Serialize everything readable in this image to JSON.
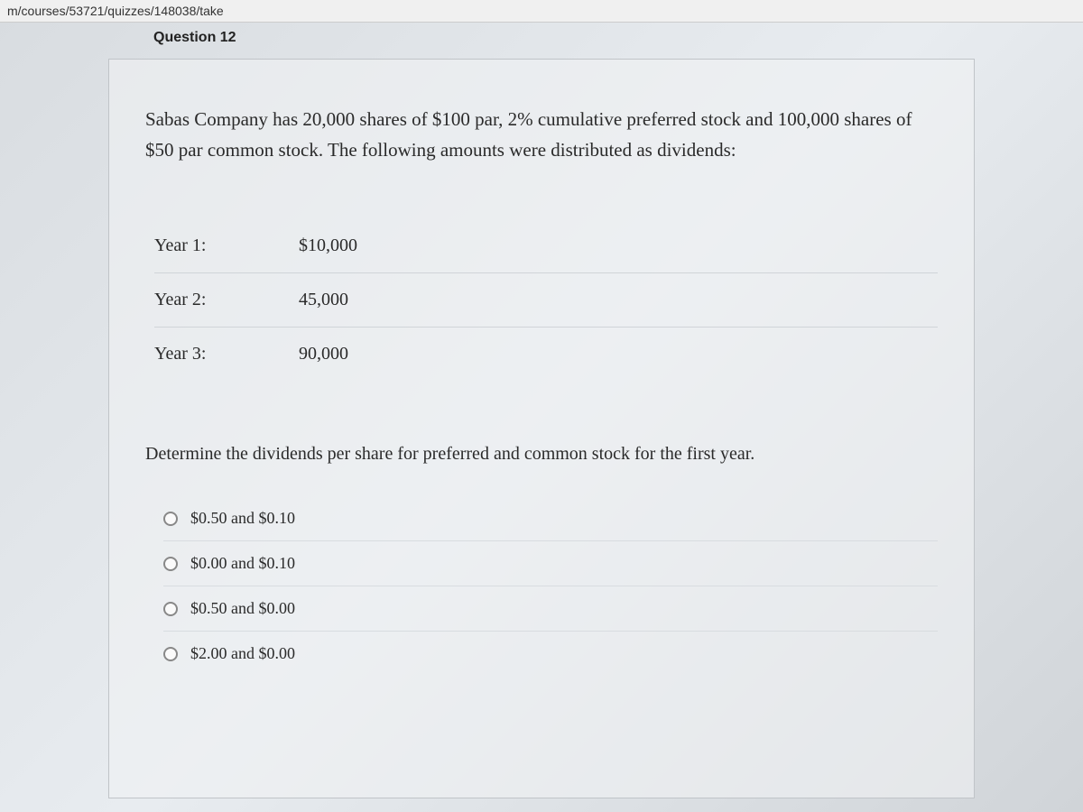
{
  "url_fragment": "m/courses/53721/quizzes/148038/take",
  "header_text": "Question 12",
  "question": {
    "intro": "Sabas Company has 20,000 shares of $100 par, 2% cumulative preferred stock and 100,000 shares of $50 par common stock.  The following amounts were distributed as dividends:",
    "years": [
      {
        "label": "Year 1:",
        "value": "$10,000"
      },
      {
        "label": "Year 2:",
        "value": "45,000"
      },
      {
        "label": "Year 3:",
        "value": "90,000"
      }
    ],
    "prompt": "Determine the dividends per share for preferred and common stock for the first year."
  },
  "options": [
    {
      "label": "$0.50 and $0.10"
    },
    {
      "label": "$0.00 and $0.10"
    },
    {
      "label": "$0.50 and $0.00"
    },
    {
      "label": "$2.00 and $0.00"
    }
  ],
  "colors": {
    "background_start": "#d8dce0",
    "background_end": "#d0d4d8",
    "container_bg": "#f0f2f4",
    "container_border": "#c0c4c8",
    "text": "#2a2a2a",
    "divider": "#d0d4d8",
    "radio_border": "#888888"
  }
}
